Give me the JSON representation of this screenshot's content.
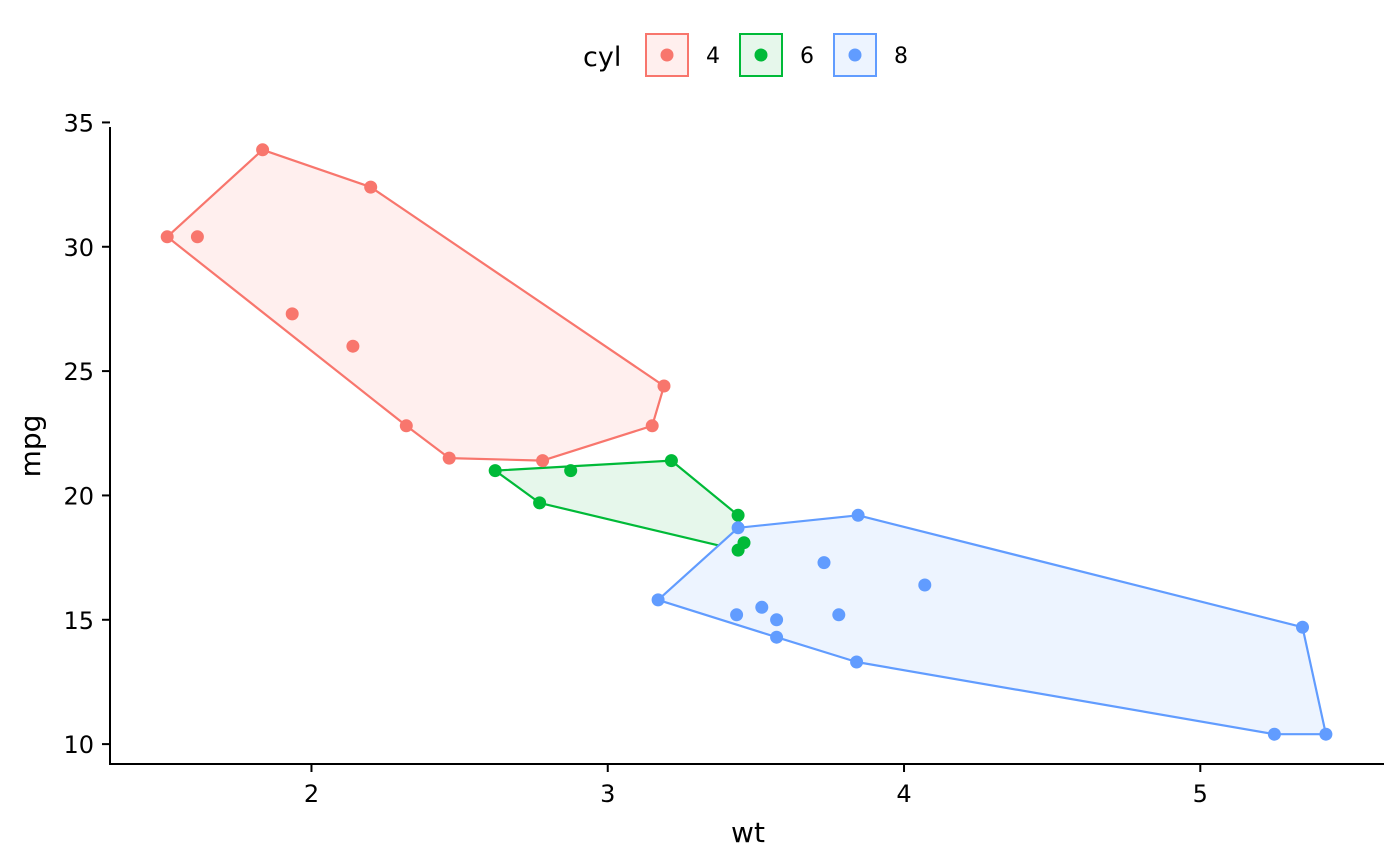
{
  "chart_data": {
    "type": "scatter",
    "xlabel": "wt",
    "ylabel": "mpg",
    "xlim": [
      1.32,
      5.62
    ],
    "ylim": [
      9.2,
      35.5
    ],
    "x_ticks": [
      2,
      3,
      4,
      5
    ],
    "y_ticks": [
      10,
      15,
      20,
      25,
      30,
      35
    ],
    "grid": false,
    "legend": {
      "title": "cyl",
      "position": "top"
    },
    "series": [
      {
        "name": "4",
        "color": "#F8766D",
        "fill": "#FFEFEE",
        "points": [
          {
            "x": 2.32,
            "y": 22.8
          },
          {
            "x": 3.19,
            "y": 24.4
          },
          {
            "x": 3.15,
            "y": 22.8
          },
          {
            "x": 2.2,
            "y": 32.4
          },
          {
            "x": 1.615,
            "y": 30.4
          },
          {
            "x": 1.835,
            "y": 33.9
          },
          {
            "x": 2.465,
            "y": 21.5
          },
          {
            "x": 1.935,
            "y": 27.3
          },
          {
            "x": 2.14,
            "y": 26.0
          },
          {
            "x": 1.513,
            "y": 30.4
          },
          {
            "x": 2.78,
            "y": 21.4
          }
        ],
        "hull": [
          {
            "x": 1.513,
            "y": 30.4
          },
          {
            "x": 1.835,
            "y": 33.9
          },
          {
            "x": 2.2,
            "y": 32.4
          },
          {
            "x": 3.19,
            "y": 24.4
          },
          {
            "x": 3.15,
            "y": 22.8
          },
          {
            "x": 2.78,
            "y": 21.4
          },
          {
            "x": 2.465,
            "y": 21.5
          },
          {
            "x": 2.32,
            "y": 22.8
          }
        ]
      },
      {
        "name": "6",
        "color": "#00BA38",
        "fill": "#E6F7EB",
        "points": [
          {
            "x": 2.62,
            "y": 21.0
          },
          {
            "x": 2.875,
            "y": 21.0
          },
          {
            "x": 3.215,
            "y": 21.4
          },
          {
            "x": 3.44,
            "y": 19.2
          },
          {
            "x": 3.46,
            "y": 18.1
          },
          {
            "x": 3.44,
            "y": 17.8
          },
          {
            "x": 2.77,
            "y": 19.7
          }
        ],
        "hull": [
          {
            "x": 2.62,
            "y": 21.0
          },
          {
            "x": 3.215,
            "y": 21.4
          },
          {
            "x": 3.44,
            "y": 19.2
          },
          {
            "x": 3.46,
            "y": 18.1
          },
          {
            "x": 3.44,
            "y": 17.8
          },
          {
            "x": 2.77,
            "y": 19.7
          }
        ]
      },
      {
        "name": "8",
        "color": "#619CFF",
        "fill": "#EDF4FF",
        "points": [
          {
            "x": 3.44,
            "y": 18.7
          },
          {
            "x": 3.57,
            "y": 14.3
          },
          {
            "x": 4.07,
            "y": 16.4
          },
          {
            "x": 3.73,
            "y": 17.3
          },
          {
            "x": 3.78,
            "y": 15.2
          },
          {
            "x": 5.25,
            "y": 10.4
          },
          {
            "x": 5.424,
            "y": 10.4
          },
          {
            "x": 5.345,
            "y": 14.7
          },
          {
            "x": 3.52,
            "y": 15.5
          },
          {
            "x": 3.435,
            "y": 15.2
          },
          {
            "x": 3.84,
            "y": 13.3
          },
          {
            "x": 3.845,
            "y": 19.2
          },
          {
            "x": 3.17,
            "y": 15.8
          },
          {
            "x": 3.57,
            "y": 15.0
          }
        ],
        "hull": [
          {
            "x": 3.17,
            "y": 15.8
          },
          {
            "x": 3.44,
            "y": 18.7
          },
          {
            "x": 3.845,
            "y": 19.2
          },
          {
            "x": 5.345,
            "y": 14.7
          },
          {
            "x": 5.424,
            "y": 10.4
          },
          {
            "x": 5.25,
            "y": 10.4
          },
          {
            "x": 3.84,
            "y": 13.3
          },
          {
            "x": 3.57,
            "y": 14.3
          }
        ]
      }
    ]
  }
}
